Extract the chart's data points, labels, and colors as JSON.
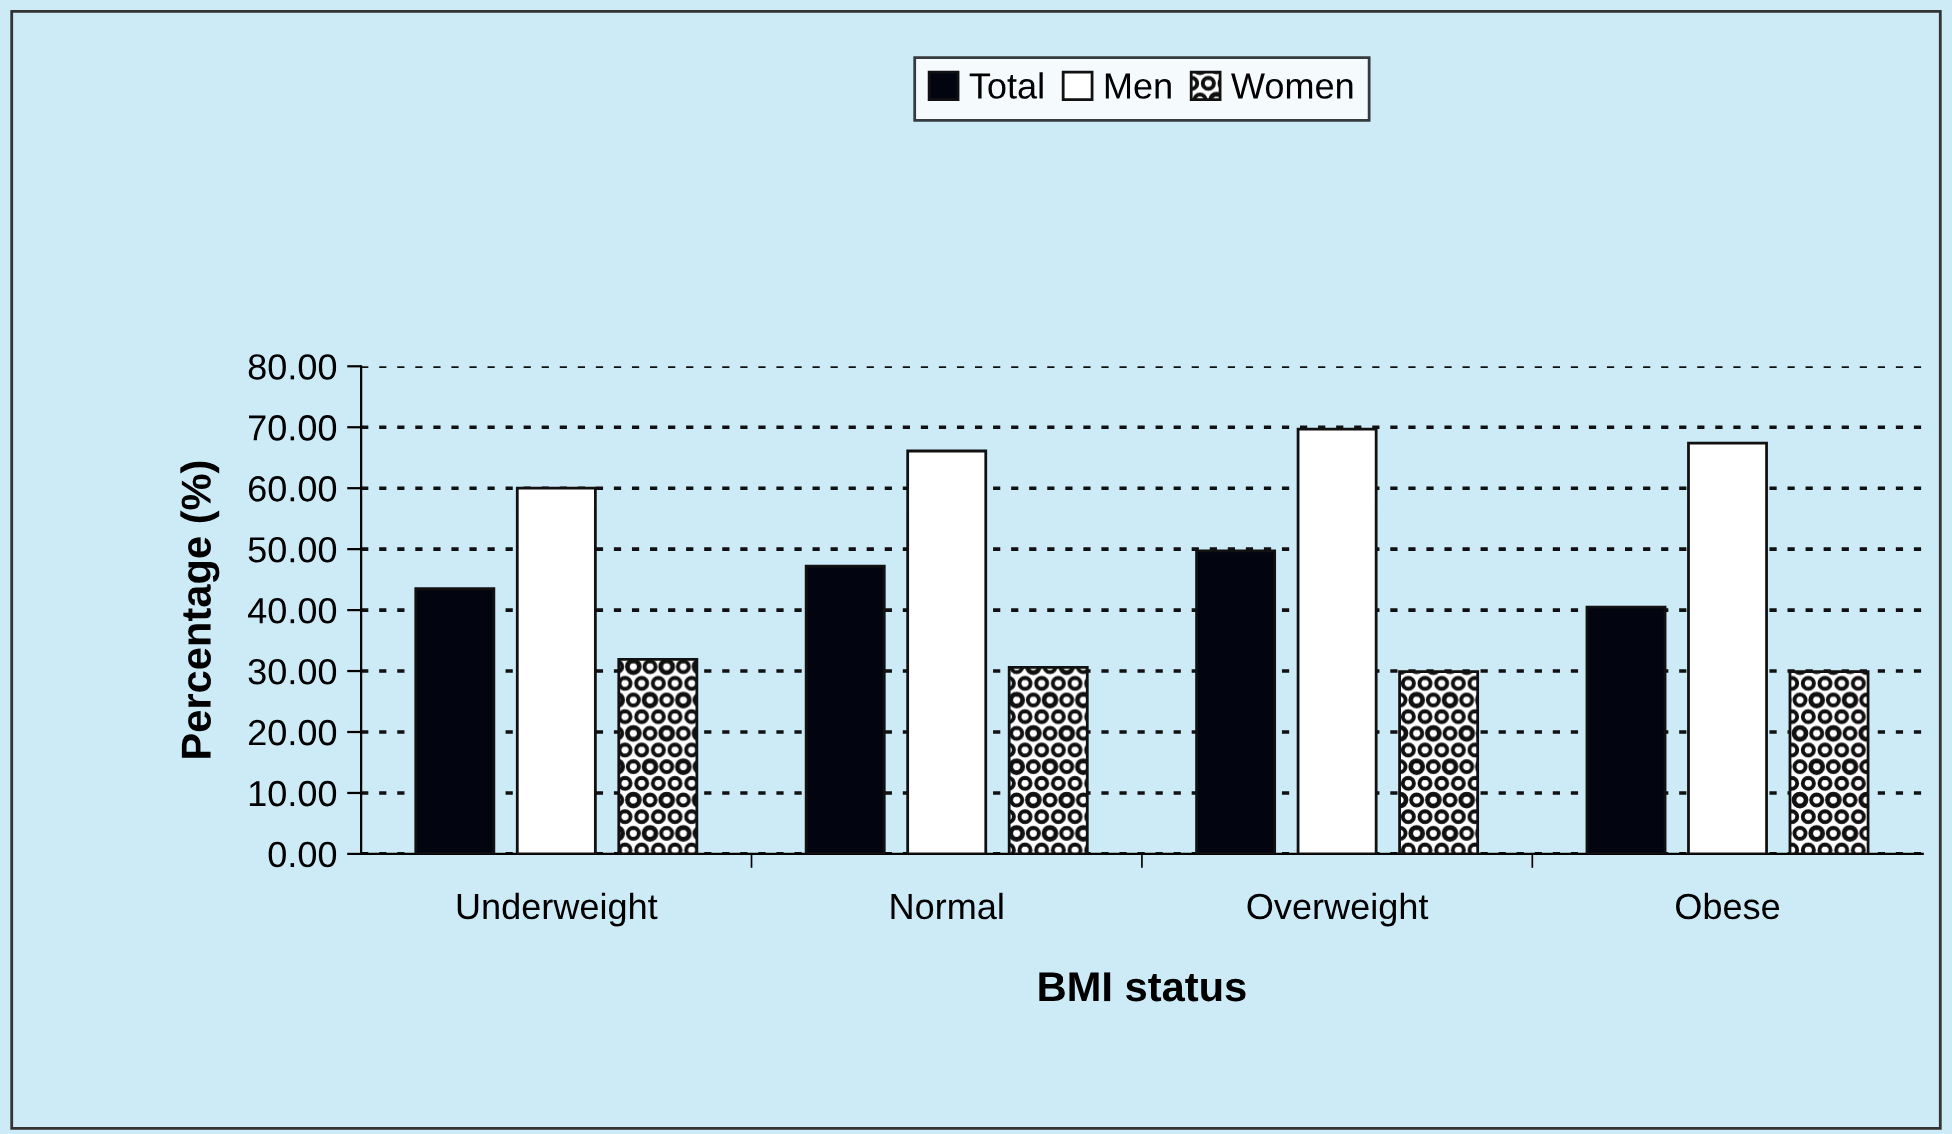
{
  "chart_data": {
    "type": "bar",
    "xlabel": "BMI status",
    "ylabel": "Percentage (%)",
    "categories": [
      "Underweight",
      "Normal",
      "Overweight",
      "Obese"
    ],
    "series": [
      {
        "name": "Total",
        "color": "#020510",
        "values": [
          43.5,
          47.2,
          49.7,
          40.5
        ]
      },
      {
        "name": "Men",
        "color": "#ffffff",
        "values": [
          60.0,
          66.1,
          69.7,
          67.4
        ]
      },
      {
        "name": "Women",
        "color": "#111111",
        "values": [
          31.9,
          30.6,
          29.9,
          29.9
        ]
      }
    ],
    "ylim": [
      0,
      80
    ],
    "yticks": [
      {
        "value": 0,
        "label": "0.00"
      },
      {
        "value": 10,
        "label": "10.00"
      },
      {
        "value": 20,
        "label": "20.00"
      },
      {
        "value": 30,
        "label": "30.00"
      },
      {
        "value": 40,
        "label": "40.00"
      },
      {
        "value": 50,
        "label": "50.00"
      },
      {
        "value": 60,
        "label": "60.00"
      },
      {
        "value": 70,
        "label": "70.00"
      },
      {
        "value": 80,
        "label": "80.00"
      }
    ],
    "grid": "y",
    "legend": "top"
  }
}
